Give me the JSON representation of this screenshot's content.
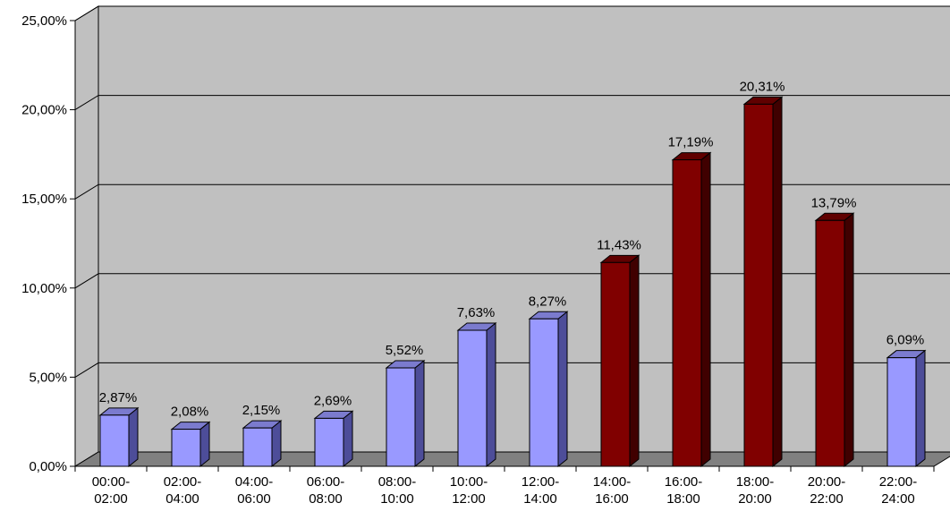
{
  "chart_data": {
    "type": "bar",
    "style": "3d-column",
    "title": "",
    "xlabel": "",
    "ylabel": "",
    "ylim": [
      0,
      25
    ],
    "y_ticks": [
      "0,00%",
      "5,00%",
      "10,00%",
      "15,00%",
      "20,00%",
      "25,00%"
    ],
    "grid": true,
    "legend": "none",
    "categories": [
      [
        "00:00-",
        "02:00"
      ],
      [
        "02:00-",
        "04:00"
      ],
      [
        "04:00-",
        "06:00"
      ],
      [
        "06:00-",
        "08:00"
      ],
      [
        "08:00-",
        "10:00"
      ],
      [
        "10:00-",
        "12:00"
      ],
      [
        "12:00-",
        "14:00"
      ],
      [
        "14:00-",
        "16:00"
      ],
      [
        "16:00-",
        "18:00"
      ],
      [
        "18:00-",
        "20:00"
      ],
      [
        "20:00-",
        "22:00"
      ],
      [
        "22:00-",
        "24:00"
      ]
    ],
    "values": [
      2.87,
      2.08,
      2.15,
      2.69,
      5.52,
      7.63,
      8.27,
      11.43,
      17.19,
      20.31,
      13.79,
      6.09
    ],
    "data_labels": [
      "2,87%",
      "2,08%",
      "2,15%",
      "2,69%",
      "5,52%",
      "7,63%",
      "8,27%",
      "11,43%",
      "17,19%",
      "20,31%",
      "13,79%",
      "6,09%"
    ],
    "highlighted": [
      false,
      false,
      false,
      false,
      false,
      false,
      false,
      true,
      true,
      true,
      true,
      false
    ],
    "colors": {
      "bar_normal": "#9999FF",
      "bar_normal_side": "#4D4D99",
      "bar_normal_top": "#7B7BCE",
      "bar_highlight": "#800000",
      "bar_highlight_side": "#400000",
      "bar_highlight_top": "#600000",
      "wall": "#C0C0C0",
      "floor": "#808080",
      "gridline": "#000000"
    }
  }
}
